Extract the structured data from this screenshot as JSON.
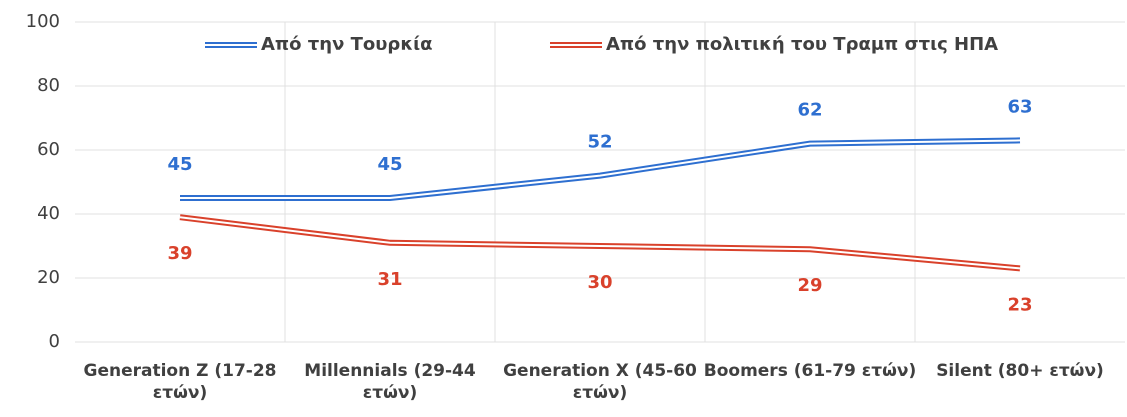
{
  "chart_data": {
    "type": "line",
    "categories": [
      "Generation Z  (17-28 ετών)",
      "Millennials (29-44 ετών)",
      "Generation X  (45-60 ετών)",
      "Boomers (61-79 ετών)",
      "Silent  (80+ ετών)"
    ],
    "series": [
      {
        "name": "Από την Τουρκία",
        "color": "#2e6fd0",
        "values": [
          45,
          45,
          52,
          62,
          63
        ]
      },
      {
        "name": "Από την πολιτική του Τραμπ στις ΗΠΑ",
        "color": "#d9412b",
        "values": [
          39,
          31,
          30,
          29,
          23
        ]
      }
    ],
    "ylim": [
      0,
      100
    ],
    "yticks": [
      0,
      20,
      40,
      60,
      80,
      100
    ],
    "grid": true,
    "legend": "top"
  }
}
